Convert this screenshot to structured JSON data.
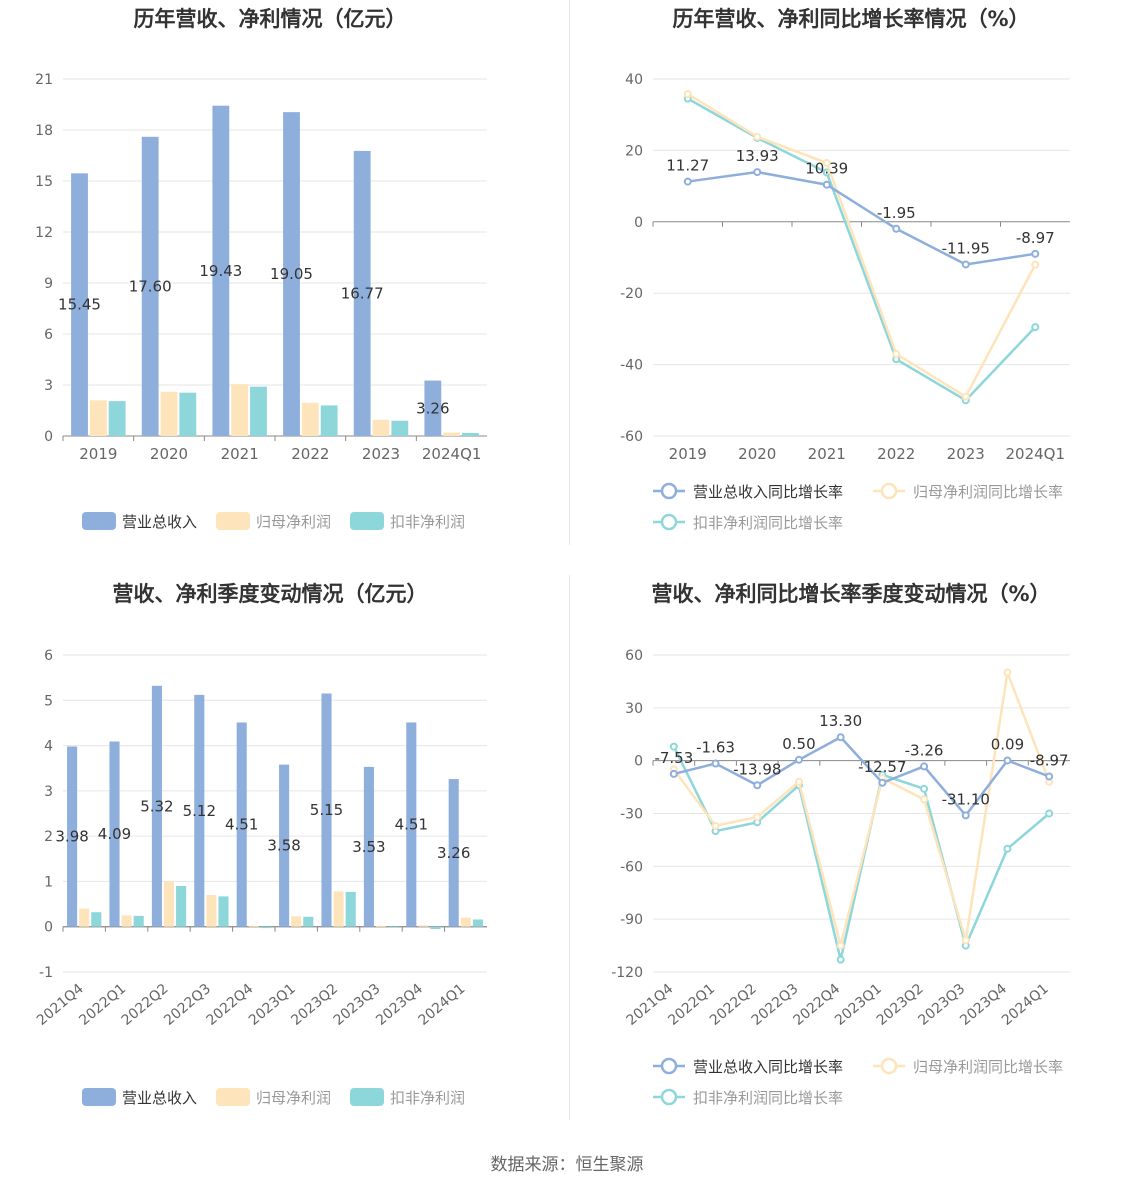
{
  "footer": "数据来源：恒生聚源",
  "colors": {
    "revenue": "#8eaedc",
    "net": "#fde4ba",
    "deducted": "#8dd6da"
  },
  "chart_data": [
    {
      "type": "bar",
      "title": "历年营收、净利情况（亿元）",
      "categories": [
        "2019",
        "2020",
        "2021",
        "2022",
        "2023",
        "2024Q1"
      ],
      "ylim": [
        0,
        21
      ],
      "yticks": [
        0,
        3,
        6,
        9,
        12,
        15,
        18,
        21
      ],
      "series": [
        {
          "name": "营业总收入",
          "values": [
            15.45,
            17.6,
            19.43,
            19.05,
            16.77,
            3.26
          ],
          "labels": [
            "15.45",
            "17.60",
            "19.43",
            "19.05",
            "16.77",
            "3.26"
          ]
        },
        {
          "name": "归母净利润",
          "values": [
            2.1,
            2.6,
            3.05,
            1.95,
            0.95,
            0.2
          ]
        },
        {
          "name": "扣非净利润",
          "values": [
            2.05,
            2.55,
            2.9,
            1.8,
            0.9,
            0.18
          ]
        }
      ],
      "grid": true,
      "legend": "bottom"
    },
    {
      "type": "line",
      "title": "历年营收、净利同比增长率情况（%）",
      "categories": [
        "2019",
        "2020",
        "2021",
        "2022",
        "2023",
        "2024Q1"
      ],
      "ylim": [
        -60,
        40
      ],
      "yticks": [
        -60,
        -40,
        -20,
        0,
        20,
        40
      ],
      "series": [
        {
          "name": "营业总收入同比增长率",
          "values": [
            11.27,
            13.93,
            10.39,
            -1.95,
            -11.95,
            -8.97
          ],
          "labels": [
            "11.27",
            "13.93",
            "10.39",
            "-1.95",
            "-11.95",
            "-8.97"
          ]
        },
        {
          "name": "归母净利润同比增长率",
          "values": [
            35.8,
            23.8,
            16.5,
            -37.0,
            -49.0,
            -12.0
          ]
        },
        {
          "name": "扣非净利润同比增长率",
          "values": [
            34.5,
            23.5,
            13.8,
            -38.5,
            -50.0,
            -29.5
          ]
        }
      ],
      "grid": true,
      "legend": "bottom"
    },
    {
      "type": "bar",
      "title": "营收、净利季度变动情况（亿元）",
      "categories": [
        "2021Q4",
        "2022Q1",
        "2022Q2",
        "2022Q3",
        "2022Q4",
        "2023Q1",
        "2023Q2",
        "2023Q3",
        "2023Q4",
        "2024Q1"
      ],
      "ylim": [
        -1,
        6
      ],
      "yticks": [
        -1,
        0,
        1,
        2,
        3,
        4,
        5,
        6
      ],
      "series": [
        {
          "name": "营业总收入",
          "values": [
            3.98,
            4.09,
            5.32,
            5.12,
            4.51,
            3.58,
            5.15,
            3.53,
            4.51,
            3.26
          ],
          "labels": [
            "3.98",
            "4.09",
            "5.32",
            "5.12",
            "4.51",
            "3.58",
            "5.15",
            "3.53",
            "4.51",
            "3.26"
          ]
        },
        {
          "name": "归母净利润",
          "values": [
            0.4,
            0.25,
            1.0,
            0.7,
            0.02,
            0.23,
            0.78,
            0.02,
            0.03,
            0.2
          ]
        },
        {
          "name": "扣非净利润",
          "values": [
            0.32,
            0.24,
            0.9,
            0.67,
            -0.03,
            0.22,
            0.77,
            -0.02,
            -0.05,
            0.16
          ]
        }
      ],
      "grid": true,
      "legend": "bottom"
    },
    {
      "type": "line",
      "title": "营收、净利同比增长率季度变动情况（%）",
      "categories": [
        "2021Q4",
        "2022Q1",
        "2022Q2",
        "2022Q3",
        "2022Q4",
        "2023Q1",
        "2023Q2",
        "2023Q3",
        "2023Q4",
        "2024Q1"
      ],
      "ylim": [
        -120,
        60
      ],
      "yticks": [
        -120,
        -90,
        -60,
        -30,
        0,
        30,
        60
      ],
      "series": [
        {
          "name": "营业总收入同比增长率",
          "values": [
            -7.53,
            -1.63,
            -13.98,
            0.5,
            13.3,
            -12.57,
            -3.26,
            -31.1,
            0.09,
            -8.97
          ],
          "labels": [
            "-7.53",
            "-1.63",
            "-13.98",
            "0.50",
            "13.30",
            "-12.57",
            "-3.26",
            "-31.10",
            "0.09",
            "-8.97"
          ]
        },
        {
          "name": "归母净利润同比增长率",
          "values": [
            -5,
            -37,
            -32,
            -12,
            -105,
            -10,
            -22,
            -102,
            50,
            -12
          ]
        },
        {
          "name": "扣非净利润同比增长率",
          "values": [
            8,
            -40,
            -35,
            -14,
            -113,
            -8,
            -16,
            -105,
            -50,
            -30
          ]
        }
      ],
      "grid": true,
      "legend": "bottom"
    }
  ]
}
